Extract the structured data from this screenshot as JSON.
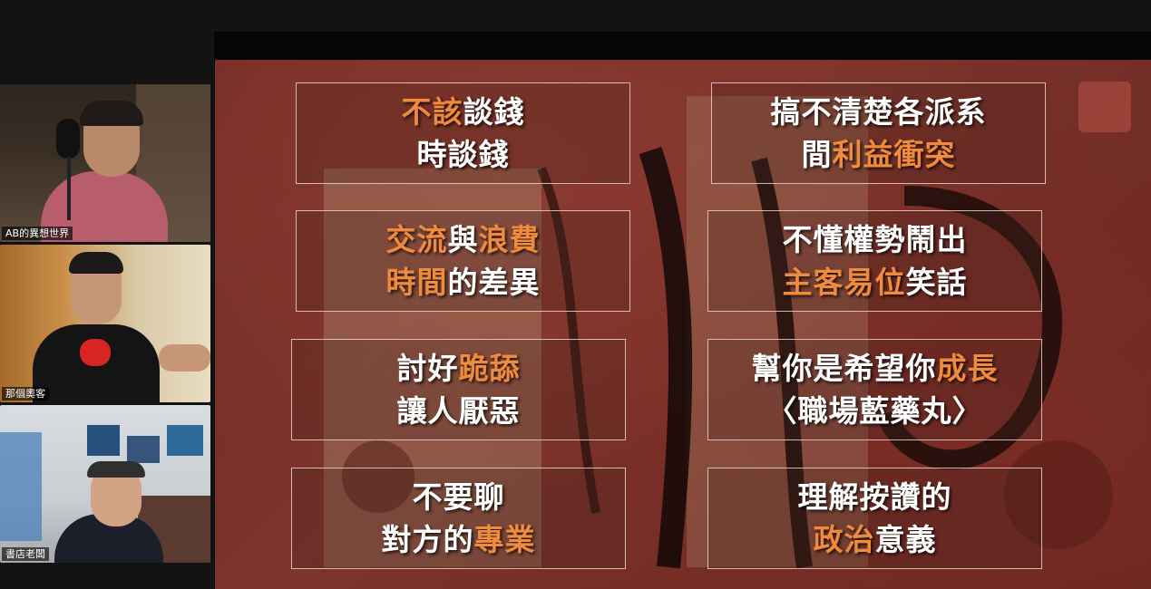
{
  "participants": [
    {
      "name": "AB的異想世界"
    },
    {
      "name": "那個奧客"
    },
    {
      "name": "書店老闆"
    }
  ],
  "slide": {
    "accent_color": "#f08a3c",
    "text_color": "#ffffff",
    "tiles": [
      {
        "lines": [
          [
            {
              "t": "不該",
              "h": true
            },
            {
              "t": "談錢",
              "h": false
            }
          ],
          [
            {
              "t": "時談錢",
              "h": false
            }
          ]
        ]
      },
      {
        "lines": [
          [
            {
              "t": "搞不清楚各派系",
              "h": false
            }
          ],
          [
            {
              "t": "間",
              "h": false
            },
            {
              "t": "利益衝突",
              "h": true
            }
          ]
        ]
      },
      {
        "lines": [
          [
            {
              "t": "交流",
              "h": true
            },
            {
              "t": "與",
              "h": false
            },
            {
              "t": "浪費",
              "h": true
            }
          ],
          [
            {
              "t": "時間",
              "h": true
            },
            {
              "t": "的差異",
              "h": false
            }
          ]
        ]
      },
      {
        "lines": [
          [
            {
              "t": "不懂權勢鬧出",
              "h": false
            }
          ],
          [
            {
              "t": "主客易位",
              "h": true
            },
            {
              "t": "笑話",
              "h": false
            }
          ]
        ]
      },
      {
        "lines": [
          [
            {
              "t": "討好",
              "h": false
            },
            {
              "t": "跪舔",
              "h": true
            }
          ],
          [
            {
              "t": "讓人厭惡",
              "h": false
            }
          ]
        ]
      },
      {
        "lines": [
          [
            {
              "t": "幫你是希望你",
              "h": false
            },
            {
              "t": "成長",
              "h": true
            }
          ],
          [
            {
              "t": "〈職場藍藥丸〉",
              "h": false
            }
          ]
        ]
      },
      {
        "lines": [
          [
            {
              "t": "不要聊",
              "h": false
            }
          ],
          [
            {
              "t": "對方的",
              "h": false
            },
            {
              "t": "專業",
              "h": true
            }
          ]
        ]
      },
      {
        "lines": [
          [
            {
              "t": "理解按讚的",
              "h": false
            }
          ],
          [
            {
              "t": "政治",
              "h": true
            },
            {
              "t": "意義",
              "h": false
            }
          ]
        ]
      }
    ]
  }
}
